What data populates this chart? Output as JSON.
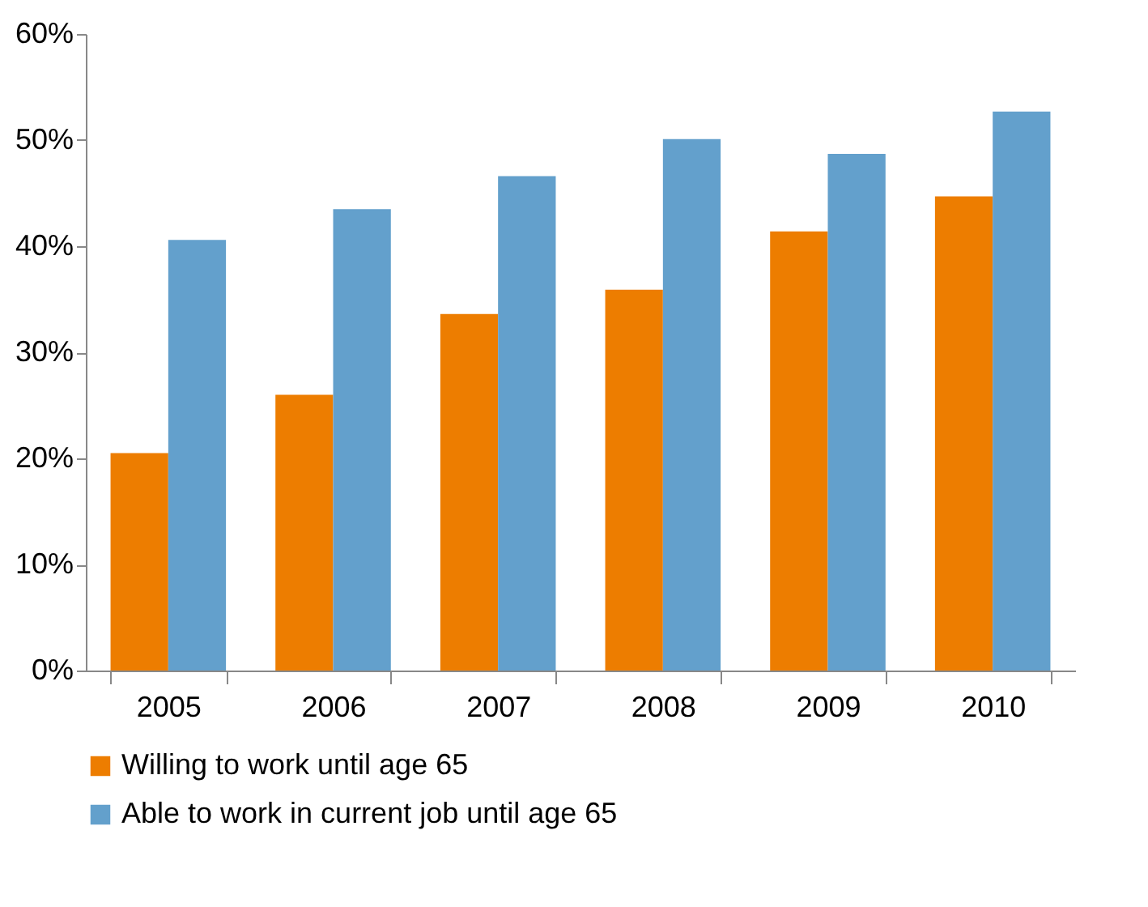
{
  "chart_data": {
    "type": "bar",
    "categories": [
      "2005",
      "2006",
      "2007",
      "2008",
      "2009",
      "2010"
    ],
    "series": [
      {
        "name": "Willing to work until age 65",
        "color": "#ed7d00",
        "values": [
          20.5,
          26.0,
          33.6,
          35.9,
          41.4,
          44.7
        ]
      },
      {
        "name": "Able to work in current job until age 65",
        "color": "#63a0cc",
        "values": [
          40.6,
          43.5,
          46.6,
          50.1,
          48.7,
          52.7
        ]
      }
    ],
    "ylim": [
      0,
      60
    ],
    "yticks": [
      {
        "value": 0,
        "label": "0%"
      },
      {
        "value": 10,
        "label": "10%"
      },
      {
        "value": 20,
        "label": "20%"
      },
      {
        "value": 30,
        "label": "30%"
      },
      {
        "value": 40,
        "label": "40%"
      },
      {
        "value": 50,
        "label": "50%"
      },
      {
        "value": 60,
        "label": "60%"
      }
    ],
    "grid": false,
    "legend": "bottom"
  }
}
